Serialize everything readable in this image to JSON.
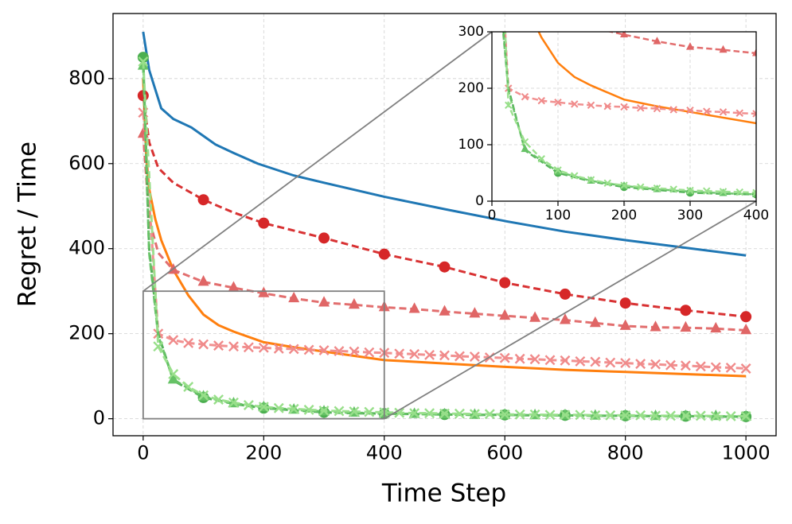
{
  "chart_data": {
    "type": "line",
    "x_label": "Time Step",
    "y_label": "Regret / Time",
    "xlim": [
      -50,
      1050
    ],
    "ylim": [
      -40,
      953
    ],
    "xticks": [
      0,
      200,
      400,
      600,
      800,
      1000
    ],
    "yticks": [
      0,
      200,
      400,
      600,
      800
    ],
    "grid": true,
    "series": [
      {
        "color": "#1f77b4",
        "dash": false,
        "marker": null,
        "x": [
          0,
          10,
          20,
          30,
          50,
          80,
          100,
          120,
          150,
          190,
          250,
          300,
          400,
          500,
          600,
          700,
          800,
          900,
          1000
        ],
        "values": [
          910,
          820,
          775,
          730,
          705,
          685,
          665,
          645,
          625,
          600,
          572,
          555,
          522,
          493,
          465,
          440,
          420,
          402,
          384
        ]
      },
      {
        "color": "#ff7f0e",
        "dash": false,
        "marker": null,
        "x": [
          0,
          5,
          10,
          20,
          30,
          50,
          75,
          100,
          125,
          150,
          200,
          250,
          300,
          400,
          500,
          600,
          700,
          800,
          900,
          1000
        ],
        "values": [
          800,
          620,
          540,
          470,
          420,
          350,
          290,
          245,
          220,
          205,
          180,
          168,
          158,
          138,
          130,
          122,
          115,
          110,
          105,
          100
        ]
      },
      {
        "color": "#d62728",
        "dash": true,
        "marker": "circle",
        "markevery": 100,
        "x": [
          0,
          10,
          25,
          50,
          100,
          150,
          200,
          300,
          400,
          500,
          600,
          700,
          800,
          900,
          1000
        ],
        "values": [
          760,
          650,
          590,
          555,
          515,
          485,
          460,
          425,
          387,
          357,
          320,
          293,
          272,
          255,
          240
        ]
      },
      {
        "color": "#e06666",
        "dash": true,
        "marker": "triangle",
        "markevery": 50,
        "x": [
          0,
          10,
          25,
          50,
          100,
          150,
          200,
          250,
          300,
          350,
          400,
          450,
          500,
          550,
          600,
          650,
          700,
          750,
          800,
          850,
          900,
          950,
          1000
        ],
        "values": [
          670,
          470,
          390,
          350,
          322,
          308,
          295,
          283,
          273,
          268,
          262,
          258,
          252,
          247,
          242,
          237,
          232,
          225,
          218,
          215,
          214,
          212,
          208
        ]
      },
      {
        "color": "#f08a8a",
        "dash": true,
        "marker": "x",
        "markevery": 25,
        "x": [
          0,
          25,
          50,
          75,
          100,
          125,
          150,
          175,
          200,
          225,
          250,
          275,
          300,
          325,
          350,
          375,
          400,
          425,
          450,
          475,
          500,
          525,
          550,
          575,
          600,
          625,
          650,
          675,
          700,
          725,
          750,
          775,
          800,
          825,
          850,
          875,
          900,
          925,
          950,
          975,
          1000
        ],
        "values": [
          720,
          200,
          185,
          178,
          175,
          172,
          170,
          168,
          167,
          165,
          164,
          162,
          161,
          159,
          158,
          156,
          155,
          153,
          152,
          150,
          149,
          147,
          146,
          144,
          143,
          141,
          140,
          138,
          137,
          135,
          134,
          132,
          131,
          129,
          128,
          126,
          125,
          123,
          121,
          120,
          118
        ]
      },
      {
        "color": "#4caf50",
        "dash": true,
        "marker": "circle",
        "markevery": 100,
        "x": [
          0,
          10,
          25,
          50,
          100,
          150,
          200,
          250,
          300,
          350,
          400,
          450,
          500,
          550,
          600,
          650,
          700,
          750,
          800,
          850,
          900,
          950,
          1000
        ],
        "values": [
          850,
          400,
          200,
          90,
          50,
          35,
          25,
          20,
          15,
          13,
          12,
          11,
          10,
          9,
          9,
          8,
          8,
          7,
          7,
          6,
          6,
          5,
          5
        ]
      },
      {
        "color": "#66c266",
        "dash": true,
        "marker": "triangle",
        "markevery": 50,
        "x": [
          0,
          10,
          25,
          50,
          100,
          150,
          200,
          250,
          300,
          350,
          400,
          450,
          500,
          550,
          600,
          650,
          700,
          750,
          800,
          850,
          900,
          950,
          1000
        ],
        "values": [
          830,
          390,
          195,
          92,
          52,
          36,
          27,
          21,
          17,
          14,
          12,
          11,
          10,
          9,
          9,
          8,
          8,
          7,
          7,
          6,
          6,
          6,
          5
        ]
      },
      {
        "color": "#98df8a",
        "dash": true,
        "marker": "x",
        "markevery": 25,
        "x": [
          0,
          25,
          50,
          75,
          100,
          125,
          150,
          175,
          200,
          225,
          250,
          275,
          300,
          325,
          350,
          375,
          400,
          425,
          450,
          475,
          500,
          525,
          550,
          575,
          600,
          625,
          650,
          675,
          700,
          725,
          750,
          775,
          800,
          825,
          850,
          875,
          900,
          925,
          950,
          975,
          1000
        ],
        "values": [
          840,
          170,
          105,
          75,
          55,
          45,
          38,
          32,
          28,
          25,
          23,
          21,
          19,
          18,
          17,
          16,
          15,
          14,
          13,
          13,
          12,
          12,
          11,
          11,
          10,
          10,
          10,
          9,
          9,
          9,
          8,
          8,
          8,
          8,
          7,
          7,
          7,
          7,
          6,
          6,
          6
        ]
      }
    ],
    "inset": {
      "xlim": [
        0,
        400
      ],
      "ylim": [
        0,
        300
      ],
      "xticks": [
        0,
        100,
        200,
        300,
        400
      ],
      "yticks": [
        0,
        100,
        200,
        300
      ]
    }
  }
}
